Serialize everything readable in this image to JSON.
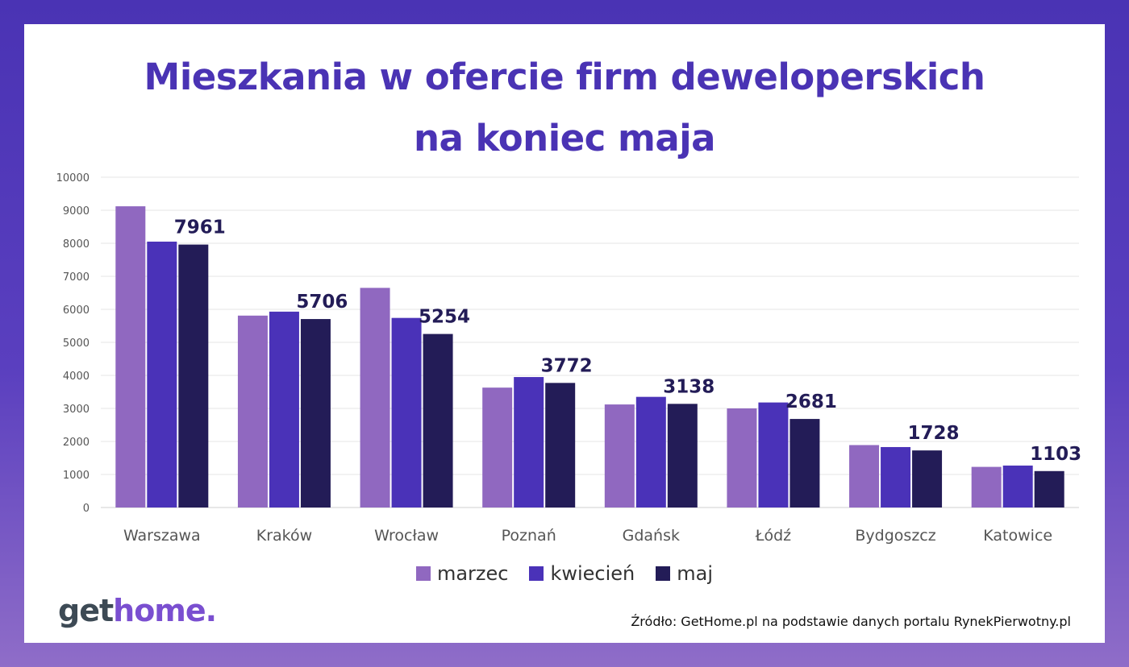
{
  "title_line1": "Mieszkania w ofercie firm deweloperskich",
  "title_line2": "na koniec maja",
  "logo": {
    "part1": "get",
    "part2": "home",
    "part3": "."
  },
  "source": "Źródło: GetHome.pl na podstawie danych portalu RynekPierwotny.pl",
  "colors": {
    "frame": "#4a33b4",
    "title": "#4a33b4",
    "marzec": "#9068c0",
    "kwiecien": "#4a32b8",
    "maj": "#231c57",
    "data_label": "#231c57"
  },
  "chart_data": {
    "type": "bar",
    "title": "Mieszkania w ofercie firm deweloperskich na koniec maja",
    "categories": [
      "Warszawa",
      "Kraków",
      "Wrocław",
      "Poznań",
      "Gdańsk",
      "Łódź",
      "Bydgoszcz",
      "Katowice"
    ],
    "series": [
      {
        "name": "marzec",
        "color": "#9068c0",
        "values": [
          9120,
          5810,
          6650,
          3630,
          3120,
          3000,
          1890,
          1230
        ]
      },
      {
        "name": "kwiecień",
        "color": "#4a32b8",
        "values": [
          8050,
          5930,
          5740,
          3950,
          3350,
          3180,
          1830,
          1270
        ]
      },
      {
        "name": "maj",
        "color": "#231c57",
        "values": [
          7961,
          5706,
          5254,
          3772,
          3138,
          2681,
          1728,
          1103
        ]
      }
    ],
    "data_labels": [
      "7961",
      "5706",
      "5254",
      "3772",
      "3138",
      "2681",
      "1728",
      "1103"
    ],
    "y_ticks": [
      "0",
      "1000",
      "2000",
      "3000",
      "4000",
      "5000",
      "6000",
      "7000",
      "8000",
      "9000",
      "10000"
    ],
    "ylim": [
      0,
      10000
    ],
    "xlabel": "",
    "ylabel": "",
    "grid": true,
    "legend_position": "bottom"
  }
}
